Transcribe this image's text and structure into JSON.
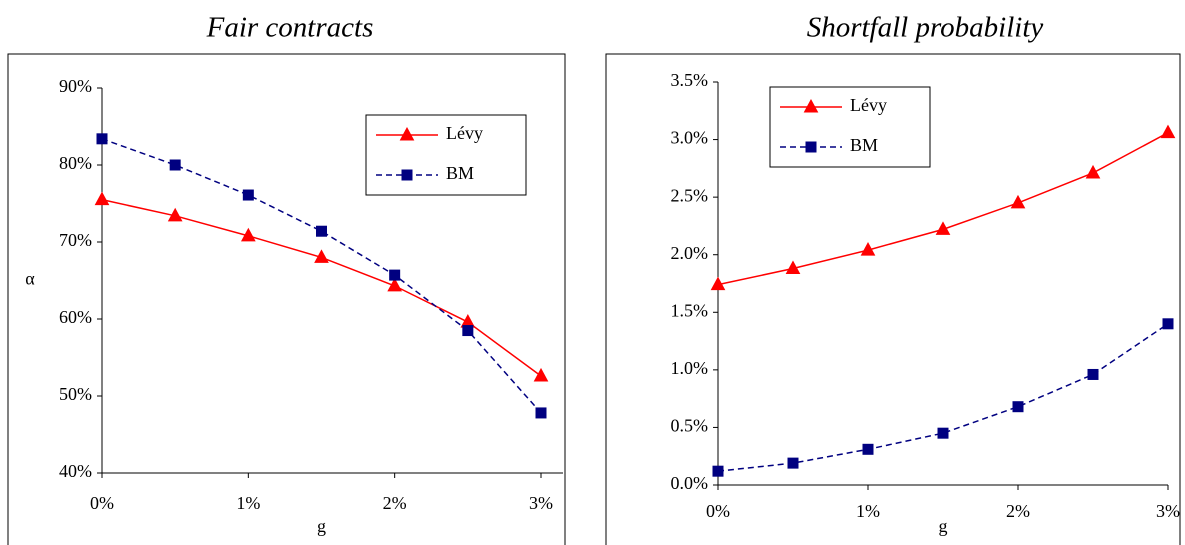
{
  "chart_data": [
    {
      "type": "line",
      "title": "Fair contracts",
      "xlabel": "g",
      "ylabel": "α",
      "x": [
        0,
        0.5,
        1,
        1.5,
        2,
        2.5,
        3
      ],
      "xlim": [
        0,
        3
      ],
      "xticks": [
        {
          "value": 0,
          "label": "0%"
        },
        {
          "value": 1,
          "label": "1%"
        },
        {
          "value": 2,
          "label": "2%"
        },
        {
          "value": 3,
          "label": "3%"
        }
      ],
      "ylim": [
        40,
        90
      ],
      "yticks": [
        {
          "value": 40,
          "label": "40%"
        },
        {
          "value": 50,
          "label": "50%"
        },
        {
          "value": 60,
          "label": "60%"
        },
        {
          "value": 70,
          "label": "70%"
        },
        {
          "value": 80,
          "label": "80%"
        },
        {
          "value": 90,
          "label": "90%"
        }
      ],
      "legend": "upper right",
      "grid": false,
      "series": [
        {
          "name": "Lévy",
          "color": "#ff0000",
          "marker": "triangle",
          "dash": false,
          "values": [
            75.5,
            73.4,
            70.8,
            68.0,
            64.3,
            59.6,
            52.6
          ]
        },
        {
          "name": "BM",
          "color": "#000080",
          "marker": "square",
          "dash": true,
          "values": [
            83.4,
            80.0,
            76.1,
            71.4,
            65.7,
            58.5,
            47.8
          ]
        }
      ]
    },
    {
      "type": "line",
      "title": "Shortfall probability",
      "xlabel": "g",
      "x": [
        0,
        0.5,
        1,
        1.5,
        2,
        2.5,
        3
      ],
      "xlim": [
        0,
        3
      ],
      "xticks": [
        {
          "value": 0,
          "label": "0%"
        },
        {
          "value": 1,
          "label": "1%"
        },
        {
          "value": 2,
          "label": "2%"
        },
        {
          "value": 3,
          "label": "3%"
        }
      ],
      "ylim": [
        0,
        3.5
      ],
      "yticks": [
        {
          "value": 0,
          "label": "0.0%"
        },
        {
          "value": 0.5,
          "label": "0.5%"
        },
        {
          "value": 1,
          "label": "1.0%"
        },
        {
          "value": 1.5,
          "label": "1.5%"
        },
        {
          "value": 2,
          "label": "2.0%"
        },
        {
          "value": 2.5,
          "label": "2.5%"
        },
        {
          "value": 3,
          "label": "3.0%"
        },
        {
          "value": 3.5,
          "label": "3.5%"
        }
      ],
      "legend": "upper left",
      "grid": false,
      "series": [
        {
          "name": "Lévy",
          "color": "#ff0000",
          "marker": "triangle",
          "dash": false,
          "values": [
            1.74,
            1.88,
            2.04,
            2.22,
            2.45,
            2.71,
            3.06
          ]
        },
        {
          "name": "BM",
          "color": "#000080",
          "marker": "square",
          "dash": true,
          "values": [
            0.12,
            0.19,
            0.31,
            0.45,
            0.68,
            0.96,
            1.4
          ]
        }
      ]
    }
  ]
}
